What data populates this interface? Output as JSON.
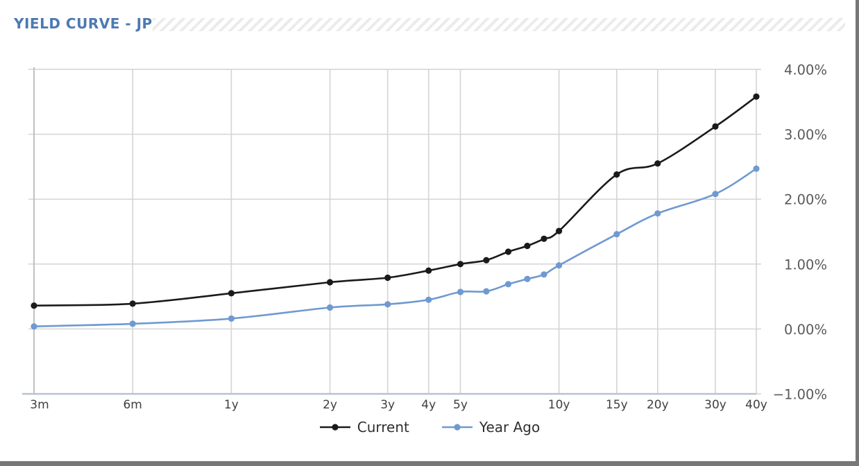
{
  "window": {
    "background": "#ffffff",
    "edge_color": "#77777a"
  },
  "header": {
    "title": "YIELD CURVE - JP",
    "title_color": "#4d79b2",
    "hatch_color": "#ebebeb"
  },
  "chart_data": {
    "type": "line",
    "title": "YIELD CURVE - JP",
    "x_scale": "log",
    "xlabel": "",
    "ylabel": "",
    "unit": "percent",
    "grid": true,
    "legend_position": "bottom",
    "ylim": [
      -1,
      4
    ],
    "x": [
      0.25,
      0.5,
      1,
      2,
      3,
      4,
      5,
      6,
      7,
      8,
      9,
      10,
      15,
      20,
      30,
      40
    ],
    "x_ticks": [
      {
        "label": "3m",
        "years": 0.25
      },
      {
        "label": "6m",
        "years": 0.5
      },
      {
        "label": "1y",
        "years": 1
      },
      {
        "label": "2y",
        "years": 2
      },
      {
        "label": "3y",
        "years": 3
      },
      {
        "label": "4y",
        "years": 4
      },
      {
        "label": "5y",
        "years": 5
      },
      {
        "label": "10y",
        "years": 10
      },
      {
        "label": "15y",
        "years": 15
      },
      {
        "label": "20y",
        "years": 20
      },
      {
        "label": "30y",
        "years": 30
      },
      {
        "label": "40y",
        "years": 40
      }
    ],
    "y_ticks": [
      {
        "label": "4.00%",
        "value": 4
      },
      {
        "label": "3.00%",
        "value": 3
      },
      {
        "label": "2.00%",
        "value": 2
      },
      {
        "label": "1.00%",
        "value": 1
      },
      {
        "label": "0.00%",
        "value": 0
      },
      {
        "label": "−1.00%",
        "value": -1
      }
    ],
    "series": [
      {
        "name": "Current",
        "color": "#1a1a1a",
        "values": [
          0.36,
          0.39,
          0.55,
          0.72,
          0.79,
          0.9,
          1.0,
          1.06,
          1.19,
          1.28,
          1.39,
          1.51,
          2.38,
          2.55,
          3.12,
          3.58
        ]
      },
      {
        "name": "Year Ago",
        "color": "#6f99d1",
        "values": [
          0.04,
          0.08,
          0.16,
          0.33,
          0.38,
          0.45,
          0.57,
          0.58,
          0.69,
          0.77,
          0.84,
          0.98,
          1.46,
          1.78,
          2.08,
          2.47
        ]
      }
    ],
    "axis_colors": {
      "grid": "#d4d4d4",
      "axis_left": "#c0c0c0",
      "axis_bottom": "#b7c3d0",
      "y_tick_text": "#595959",
      "x_tick_text": "#3f3f3f"
    }
  }
}
